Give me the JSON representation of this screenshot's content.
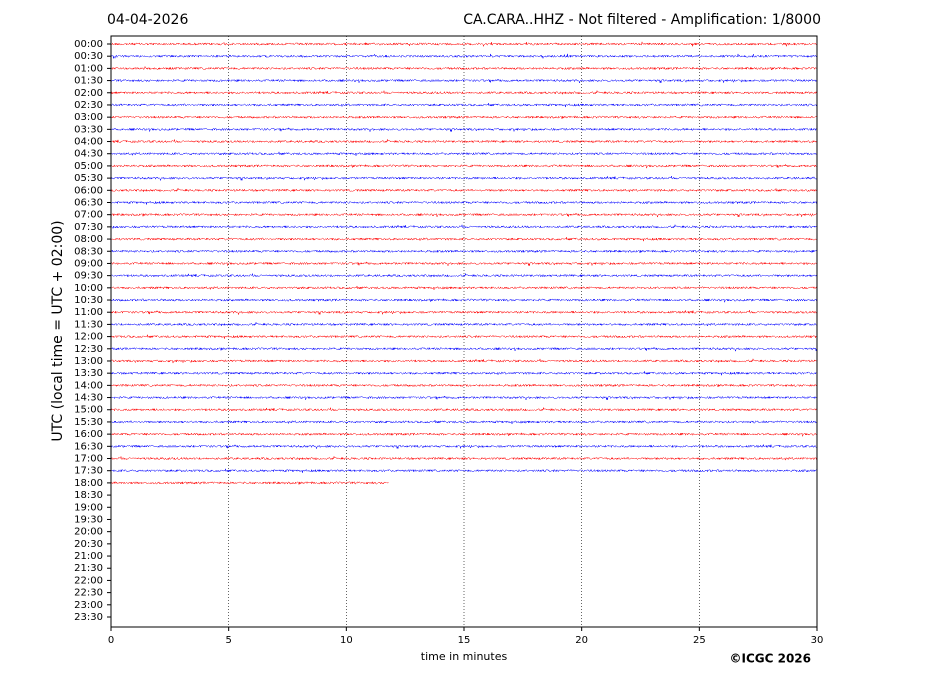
{
  "chart_data": {
    "type": "helicorder",
    "title": "CA.CARA..HHZ - Not filtered - Amplification: 1/8000",
    "date": "04-04-2026",
    "ylabel": "UTC (local time = UTC + 02:00)",
    "xlabel": "time in minutes",
    "credit": "©ICGC 2026",
    "xlim": [
      0,
      30
    ],
    "xticks": [
      0,
      5,
      10,
      15,
      20,
      25,
      30
    ],
    "grid": true,
    "colors": [
      "#ff0000",
      "#0000ff"
    ],
    "categories": [
      "00:00",
      "00:30",
      "01:00",
      "01:30",
      "02:00",
      "02:30",
      "03:00",
      "03:30",
      "04:00",
      "04:30",
      "05:00",
      "05:30",
      "06:00",
      "06:30",
      "07:00",
      "07:30",
      "08:00",
      "08:30",
      "09:00",
      "09:30",
      "10:00",
      "10:30",
      "11:00",
      "11:30",
      "12:00",
      "12:30",
      "13:00",
      "13:30",
      "14:00",
      "14:30",
      "15:00",
      "15:30",
      "16:00",
      "16:30",
      "17:00",
      "17:30",
      "18:00",
      "18:30",
      "19:00",
      "19:30",
      "20:00",
      "20:30",
      "21:00",
      "21:30",
      "22:00",
      "22:30",
      "23:00",
      "23:30"
    ],
    "values": [
      30,
      30,
      30,
      30,
      30,
      30,
      30,
      30,
      30,
      30,
      30,
      30,
      30,
      30,
      30,
      30,
      30,
      30,
      30,
      30,
      30,
      30,
      30,
      30,
      30,
      30,
      30,
      30,
      30,
      30,
      30,
      30,
      30,
      30,
      30,
      30,
      11.8,
      null,
      null,
      null,
      null,
      null,
      null,
      null,
      null,
      null,
      null,
      null
    ]
  }
}
